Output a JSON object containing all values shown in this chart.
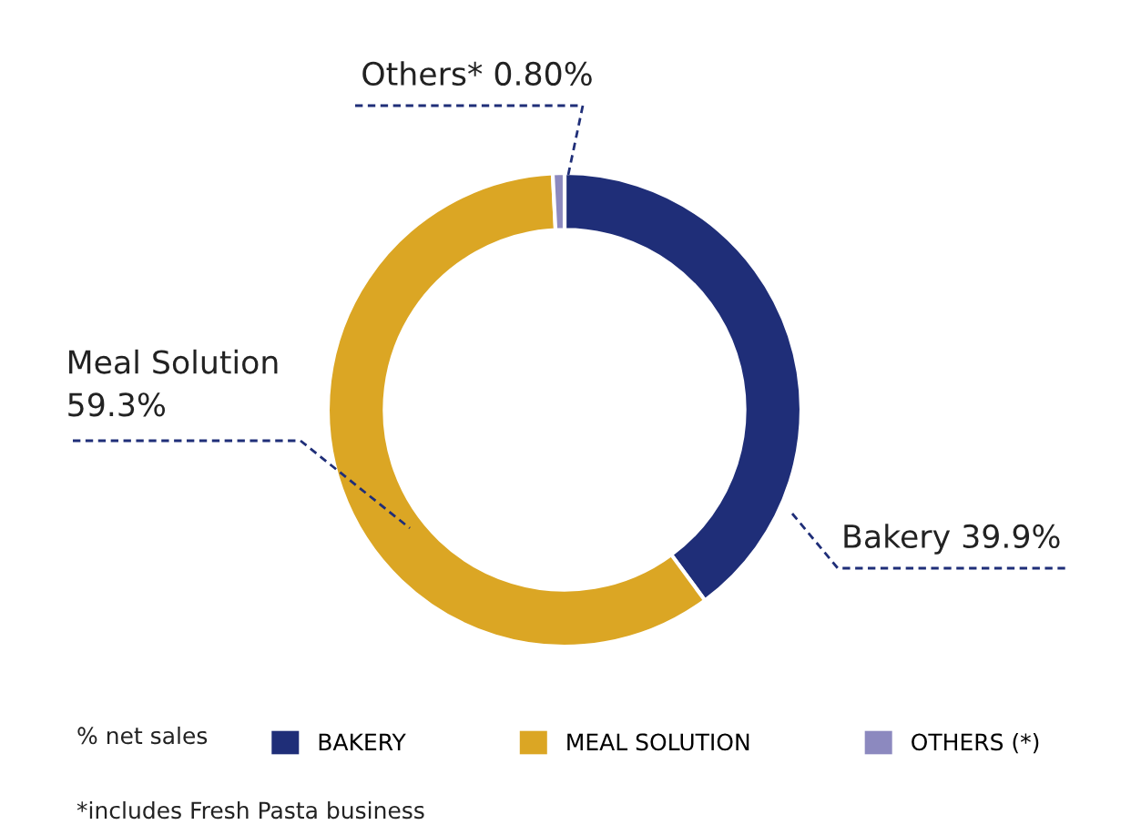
{
  "chart_data": {
    "type": "donut",
    "categories": [
      "BAKERY",
      "MEAL SOLUTION",
      "OTHERS (*)"
    ],
    "values": [
      39.9,
      59.3,
      0.8
    ],
    "colors": [
      "#1f2e78",
      "#dba624",
      "#8c89bf"
    ],
    "value_labels": [
      "Bakery 39.9%",
      "Meal Solution\n59.3%",
      "Others* 0.80%"
    ],
    "legend": "bottom",
    "legend_title": "% net sales",
    "annotations": [
      "*includes Fresh Pasta business"
    ]
  }
}
